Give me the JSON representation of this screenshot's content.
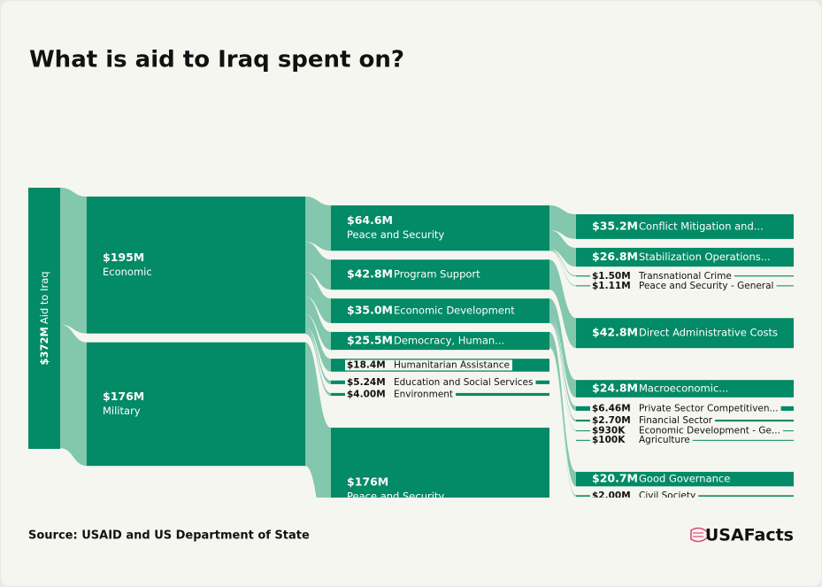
{
  "chart_data": {
    "type": "sankey",
    "title": "What is aid to Iraq spent on?",
    "source": "Source: USAID and US Department of State",
    "brand": "USAFacts",
    "node_color": "#038a66",
    "link_color": "#82c7ae",
    "root": {
      "name": "Aid to Iraq",
      "value": 372,
      "value_label": "$372M",
      "children": [
        {
          "name": "Economic",
          "value": 195,
          "value_label": "$195M",
          "children": [
            {
              "name": "Peace and Security",
              "value": 64.6,
              "value_label": "$64.6M",
              "children": [
                {
                  "name": "Conflict Mitigation and...",
                  "value": 35.2,
                  "value_label": "$35.2M"
                },
                {
                  "name": "Stabilization Operations...",
                  "value": 26.8,
                  "value_label": "$26.8M"
                },
                {
                  "name": "Transnational Crime",
                  "value": 1.5,
                  "value_label": "$1.50M"
                },
                {
                  "name": "Peace and Security - General",
                  "value": 1.11,
                  "value_label": "$1.11M"
                }
              ]
            },
            {
              "name": "Program Support",
              "value": 42.8,
              "value_label": "$42.8M",
              "children": [
                {
                  "name": "Direct Administrative Costs",
                  "value": 42.8,
                  "value_label": "$42.8M"
                }
              ]
            },
            {
              "name": "Economic Development",
              "value": 35.0,
              "value_label": "$35.0M",
              "children": [
                {
                  "name": "Macroeconomic...",
                  "value": 24.8,
                  "value_label": "$24.8M"
                },
                {
                  "name": "Private Sector Competitiven...",
                  "value": 6.46,
                  "value_label": "$6.46M"
                },
                {
                  "name": "Financial Sector",
                  "value": 2.7,
                  "value_label": "$2.70M"
                },
                {
                  "name": "Economic Development - Ge...",
                  "value": 0.93,
                  "value_label": "$930K"
                },
                {
                  "name": "Agriculture",
                  "value": 0.1,
                  "value_label": "$100K"
                }
              ]
            },
            {
              "name": "Democracy, Human...",
              "value": 25.5,
              "value_label": "$25.5M",
              "children": [
                {
                  "name": "Good Governance",
                  "value": 20.7,
                  "value_label": "$20.7M"
                },
                {
                  "name": "Civil Society",
                  "value": 2.0,
                  "value_label": "$2.00M"
                }
              ]
            },
            {
              "name": "Humanitarian Assistance",
              "value": 18.4,
              "value_label": "$18.4M"
            },
            {
              "name": "Education and Social Services",
              "value": 5.24,
              "value_label": "$5.24M"
            },
            {
              "name": "Environment",
              "value": 4.0,
              "value_label": "$4.00M"
            }
          ]
        },
        {
          "name": "Military",
          "value": 176,
          "value_label": "$176M",
          "children": [
            {
              "name": "Peace and Security",
              "value": 176,
              "value_label": "$176M"
            }
          ]
        }
      ]
    }
  }
}
